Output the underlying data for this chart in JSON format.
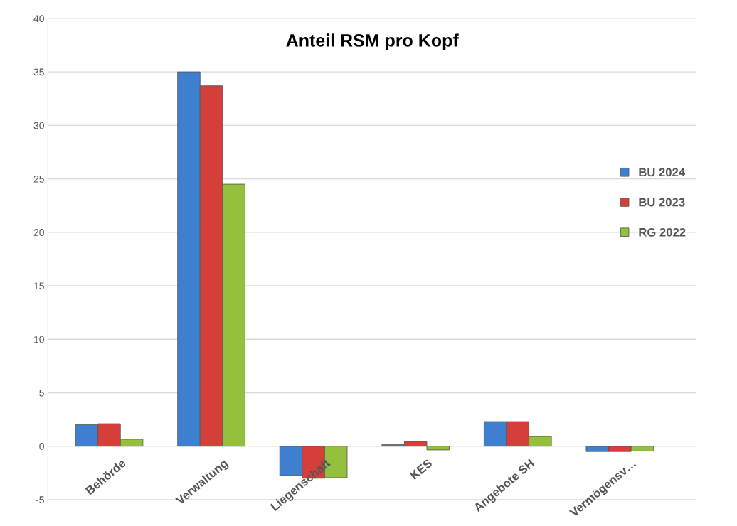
{
  "chart_data": {
    "type": "bar",
    "title": "Anteil RSM pro Kopf",
    "categories": [
      "Behörde",
      "Verwaltung",
      "Liegenschaft",
      "KES",
      "Angebote SH",
      "Vermögensv…"
    ],
    "series": [
      {
        "name": "BU 2024",
        "color": "#3f7fd0",
        "values": [
          2.0,
          35.0,
          -2.75,
          0.15,
          2.3,
          -0.5
        ]
      },
      {
        "name": "BU 2023",
        "color": "#d43f3a",
        "values": [
          2.1,
          33.7,
          -3.0,
          0.45,
          2.3,
          -0.5
        ]
      },
      {
        "name": "RG 2022",
        "color": "#94c03e",
        "values": [
          0.65,
          24.5,
          -2.95,
          -0.35,
          0.9,
          -0.45
        ]
      }
    ],
    "ylim": [
      -5.5,
      40
    ],
    "yticks": [
      -5,
      0,
      5,
      10,
      15,
      20,
      25,
      30,
      35,
      40
    ],
    "grid": "y",
    "legend": "right"
  }
}
